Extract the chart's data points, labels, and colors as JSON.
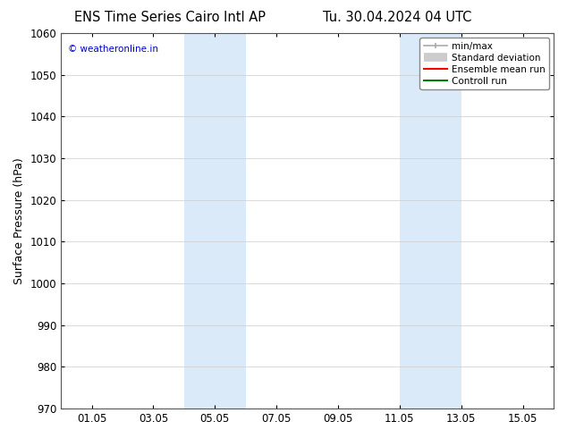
{
  "title_left": "ENS Time Series Cairo Intl AP",
  "title_right": "Tu. 30.04.2024 04 UTC",
  "ylabel": "Surface Pressure (hPa)",
  "ylim": [
    970,
    1060
  ],
  "yticks": [
    970,
    980,
    990,
    1000,
    1010,
    1020,
    1030,
    1040,
    1050,
    1060
  ],
  "xtick_labels": [
    "01.05",
    "03.05",
    "05.05",
    "07.05",
    "09.05",
    "11.05",
    "13.05",
    "15.05"
  ],
  "xtick_positions": [
    1,
    3,
    5,
    7,
    9,
    11,
    13,
    15
  ],
  "xlim": [
    0.0,
    16.0
  ],
  "shaded_bands": [
    {
      "x_start": 4.0,
      "x_end": 6.0,
      "color": "#daeaf8"
    },
    {
      "x_start": 11.0,
      "x_end": 13.0,
      "color": "#daeaf8"
    }
  ],
  "watermark_text": "© weatheronline.in",
  "watermark_color": "#0000cc",
  "legend_items": [
    {
      "label": "min/max",
      "type": "minmax",
      "color": "#aaaaaa"
    },
    {
      "label": "Standard deviation",
      "type": "stddev",
      "color": "#cccccc"
    },
    {
      "label": "Ensemble mean run",
      "type": "line",
      "color": "#ff0000"
    },
    {
      "label": "Controll run",
      "type": "line",
      "color": "#008000"
    }
  ],
  "bg_color": "#ffffff",
  "grid_color": "#cccccc",
  "title_fontsize": 10.5,
  "label_fontsize": 9,
  "tick_fontsize": 8.5,
  "legend_fontsize": 7.5
}
